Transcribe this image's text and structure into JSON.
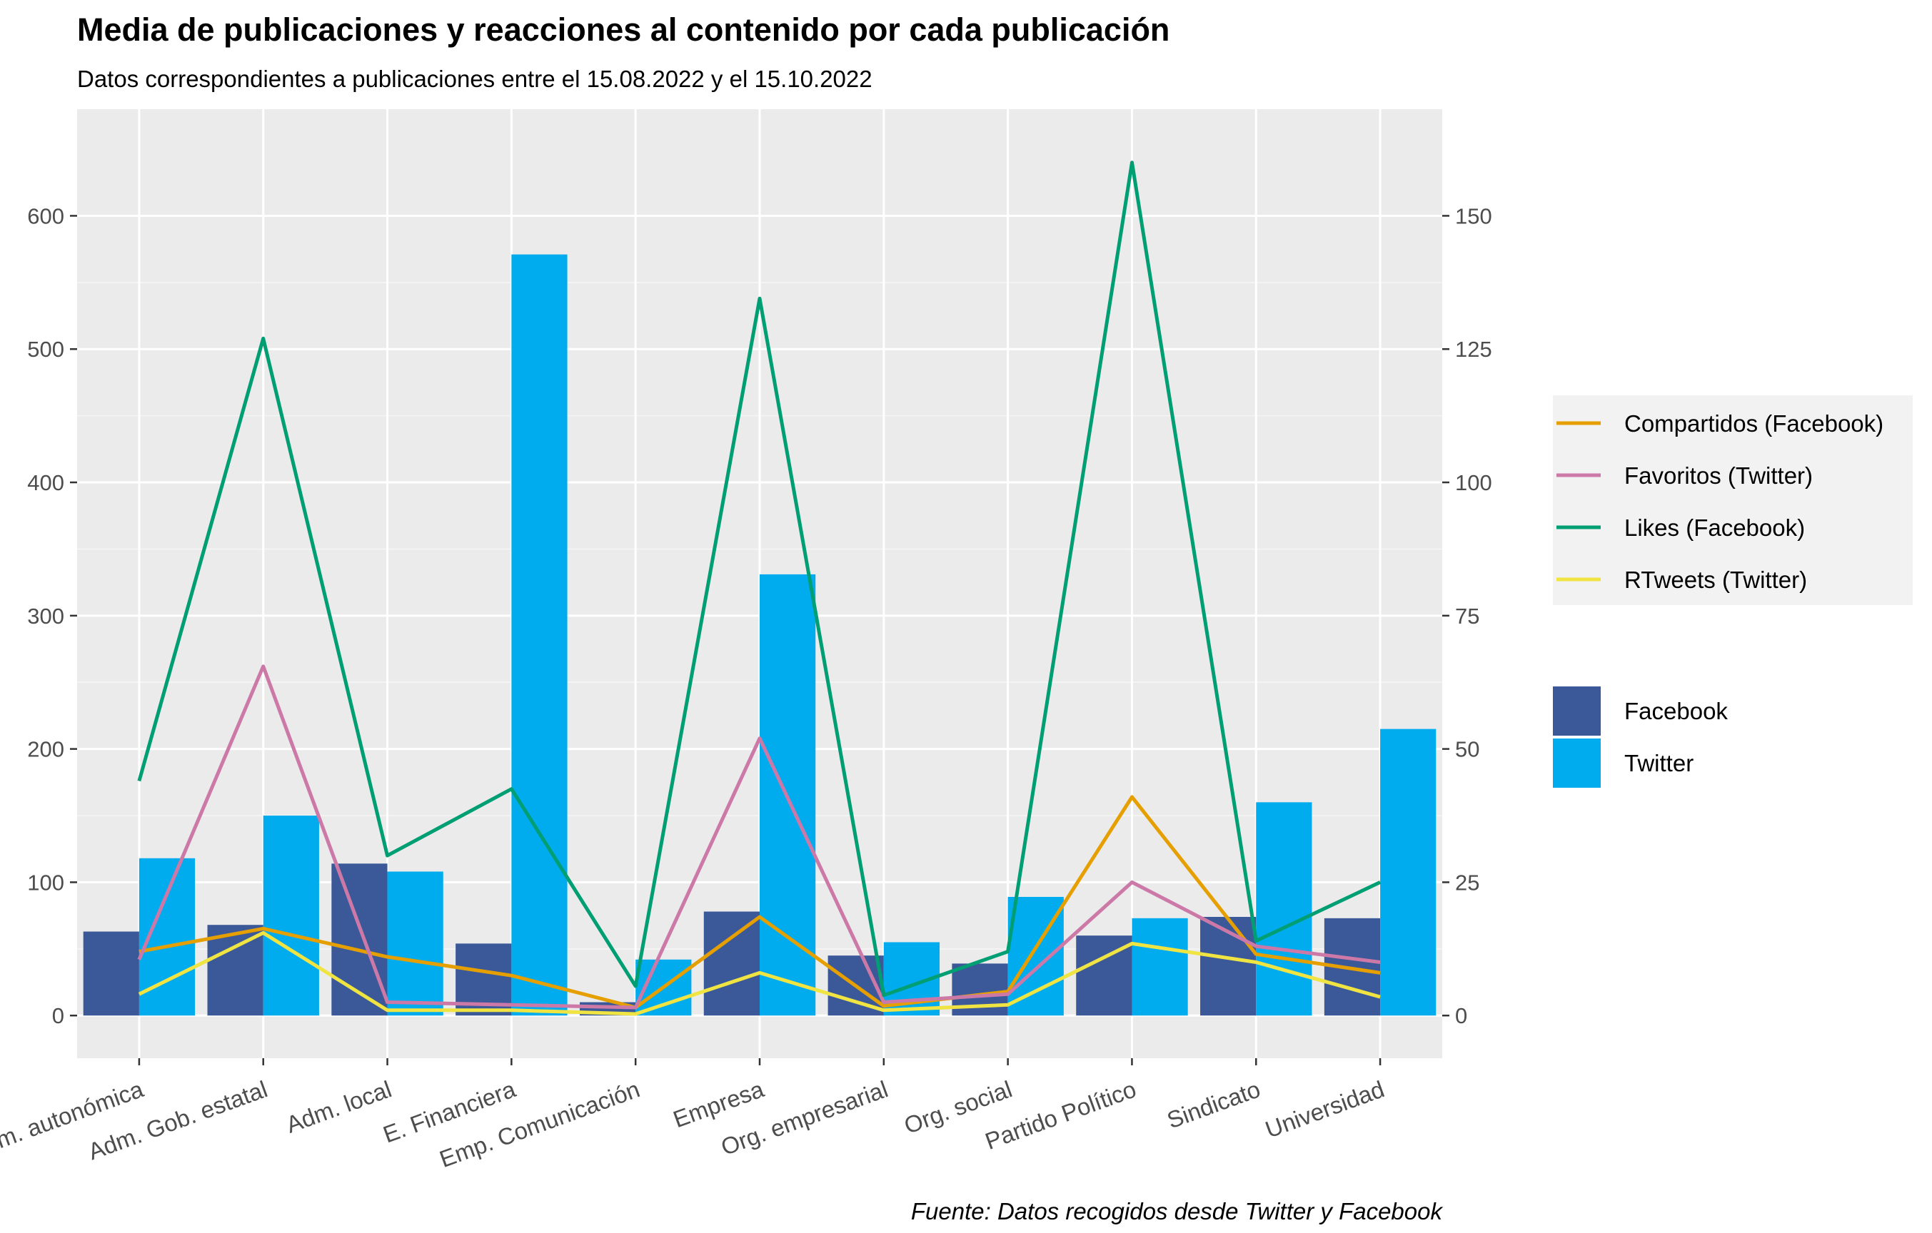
{
  "chart_data": {
    "type": "bar",
    "title": "Media de publicaciones y reacciones al contenido por cada publicación",
    "subtitle": "Datos correspondientes a publicaciones entre el 15.08.2022 y el 15.10.2022",
    "caption": "Fuente: Datos recogidos desde Twitter y Facebook",
    "categories": [
      "Adm. autonómica",
      "Adm. Gob. estatal",
      "Adm. local",
      "E. Financiera",
      "Emp. Comunicación",
      "Empresa",
      "Org. empresarial",
      "Org. social",
      "Partido Político",
      "Sindicato",
      "Universidad"
    ],
    "y_left": {
      "ylim": [
        -32,
        680
      ],
      "ticks": [
        0,
        100,
        200,
        300,
        400,
        500,
        600
      ]
    },
    "y_right": {
      "ylim": [
        -8,
        170
      ],
      "ticks": [
        0,
        25,
        50,
        75,
        100,
        125,
        150
      ]
    },
    "bar_series": [
      {
        "name": "Facebook",
        "color": "#3B5998",
        "axis": "left",
        "values": [
          63,
          68,
          114,
          54,
          10,
          78,
          45,
          39,
          60,
          74,
          73
        ]
      },
      {
        "name": "Twitter",
        "color": "#00ACEE",
        "axis": "left",
        "values": [
          118,
          150,
          108,
          571,
          42,
          331,
          55,
          89,
          73,
          160,
          215
        ]
      }
    ],
    "line_series": [
      {
        "name": "Compartidos (Facebook)",
        "color": "#E69F00",
        "axis": "right",
        "values": [
          12,
          16.3,
          11,
          7.5,
          1.5,
          18.5,
          1.8,
          4.5,
          41,
          11.5,
          8
        ]
      },
      {
        "name": "Favoritos (Twitter)",
        "color": "#CC79A7",
        "axis": "right",
        "values": [
          10.5,
          65.5,
          2.5,
          2,
          1.5,
          52,
          2.5,
          4,
          25,
          13,
          10
        ]
      },
      {
        "name": "Likes (Facebook)",
        "color": "#009E73",
        "axis": "right",
        "values": [
          44,
          127,
          30,
          42.5,
          5.5,
          134.5,
          3.8,
          12,
          160,
          14,
          25
        ]
      },
      {
        "name": "RTweets (Twitter)",
        "color": "#F0E442",
        "axis": "right",
        "values": [
          4,
          15.5,
          1,
          1,
          0.3,
          8,
          1,
          2,
          13.5,
          10,
          3.5
        ]
      }
    ],
    "legend_lines_order": [
      "Compartidos (Facebook)",
      "Favoritos (Twitter)",
      "Likes (Facebook)",
      "RTweets (Twitter)"
    ],
    "legend_bars_order": [
      "Facebook",
      "Twitter"
    ],
    "legend_position": "right",
    "grid": true,
    "panel_background": "#EBEBEB"
  }
}
